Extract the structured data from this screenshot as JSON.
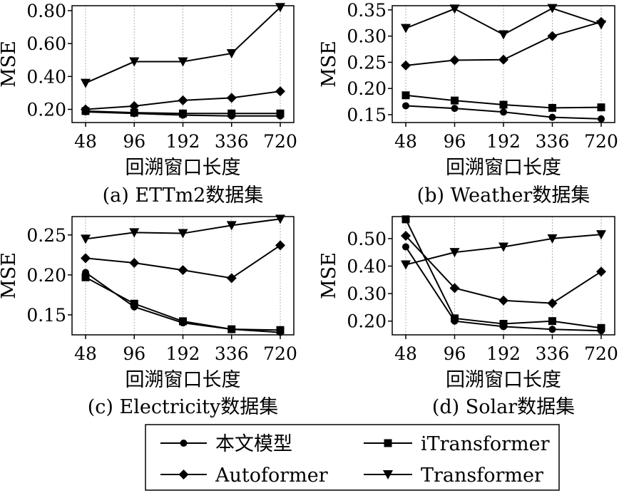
{
  "chart_data": [
    {
      "type": "line",
      "caption": "(a) ETTm2数据集",
      "xlabel": "回溯窗口长度",
      "ylabel": "MSE",
      "categories": [
        "48",
        "96",
        "192",
        "336",
        "720"
      ],
      "yticks": [
        "0.20",
        "0.40",
        "0.60",
        "0.80"
      ],
      "ylim": [
        0.12,
        0.83
      ],
      "grid_x": true,
      "series": [
        {
          "name": "本文模型",
          "marker": "circle",
          "values": [
            0.185,
            0.175,
            0.165,
            0.16,
            0.16
          ]
        },
        {
          "name": "iTransformer",
          "marker": "square",
          "values": [
            0.19,
            0.18,
            0.175,
            0.175,
            0.175
          ]
        },
        {
          "name": "Autoformer",
          "marker": "diamond",
          "values": [
            0.2,
            0.22,
            0.255,
            0.27,
            0.31
          ]
        },
        {
          "name": "Transformer",
          "marker": "triangle-down",
          "values": [
            0.36,
            0.49,
            0.49,
            0.54,
            0.82
          ]
        }
      ]
    },
    {
      "type": "line",
      "caption": "(b) Weather数据集",
      "xlabel": "回溯窗口长度",
      "ylabel": "MSE",
      "categories": [
        "48",
        "96",
        "192",
        "336",
        "720"
      ],
      "yticks": [
        "0.15",
        "0.20",
        "0.25",
        "0.30",
        "0.35"
      ],
      "ylim": [
        0.135,
        0.358
      ],
      "grid_x": true,
      "series": [
        {
          "name": "本文模型",
          "marker": "circle",
          "values": [
            0.167,
            0.162,
            0.155,
            0.145,
            0.142
          ]
        },
        {
          "name": "iTransformer",
          "marker": "square",
          "values": [
            0.187,
            0.177,
            0.169,
            0.163,
            0.164
          ]
        },
        {
          "name": "Autoformer",
          "marker": "diamond",
          "values": [
            0.244,
            0.254,
            0.255,
            0.3,
            0.327
          ]
        },
        {
          "name": "Transformer",
          "marker": "triangle-down",
          "values": [
            0.315,
            0.352,
            0.303,
            0.353,
            0.322
          ]
        }
      ]
    },
    {
      "type": "line",
      "caption": "(c) Electricity数据集",
      "xlabel": "回溯窗口长度",
      "ylabel": "MSE",
      "categories": [
        "48",
        "96",
        "192",
        "336",
        "720"
      ],
      "yticks": [
        "0.15",
        "0.20",
        "0.25"
      ],
      "ylim": [
        0.125,
        0.273
      ],
      "grid_x": true,
      "series": [
        {
          "name": "本文模型",
          "marker": "circle",
          "values": [
            0.203,
            0.16,
            0.14,
            0.132,
            0.128
          ]
        },
        {
          "name": "iTransformer",
          "marker": "square",
          "values": [
            0.197,
            0.164,
            0.142,
            0.132,
            0.131
          ]
        },
        {
          "name": "Autoformer",
          "marker": "diamond",
          "values": [
            0.221,
            0.215,
            0.206,
            0.196,
            0.237
          ]
        },
        {
          "name": "Transformer",
          "marker": "triangle-down",
          "values": [
            0.245,
            0.253,
            0.252,
            0.262,
            0.27
          ]
        }
      ]
    },
    {
      "type": "line",
      "caption": "(d) Solar数据集",
      "xlabel": "回溯窗口长度",
      "ylabel": "MSE",
      "categories": [
        "48",
        "96",
        "192",
        "336",
        "720"
      ],
      "yticks": [
        "0.20",
        "0.30",
        "0.40",
        "0.50"
      ],
      "ylim": [
        0.15,
        0.58
      ],
      "grid_x": true,
      "series": [
        {
          "name": "本文模型",
          "marker": "circle",
          "values": [
            0.47,
            0.2,
            0.18,
            0.17,
            0.165
          ]
        },
        {
          "name": "iTransformer",
          "marker": "square",
          "values": [
            0.57,
            0.21,
            0.19,
            0.2,
            0.175
          ]
        },
        {
          "name": "Autoformer",
          "marker": "diamond",
          "values": [
            0.51,
            0.32,
            0.275,
            0.265,
            0.38
          ]
        },
        {
          "name": "Transformer",
          "marker": "triangle-down",
          "values": [
            0.405,
            0.45,
            0.47,
            0.5,
            0.515
          ]
        }
      ]
    }
  ],
  "legend": {
    "placement": "bottom-center",
    "items": [
      {
        "label": "本文模型",
        "marker": "circle"
      },
      {
        "label": "iTransformer",
        "marker": "square"
      },
      {
        "label": "Autoformer",
        "marker": "diamond"
      },
      {
        "label": "Transformer",
        "marker": "triangle-down"
      }
    ]
  }
}
